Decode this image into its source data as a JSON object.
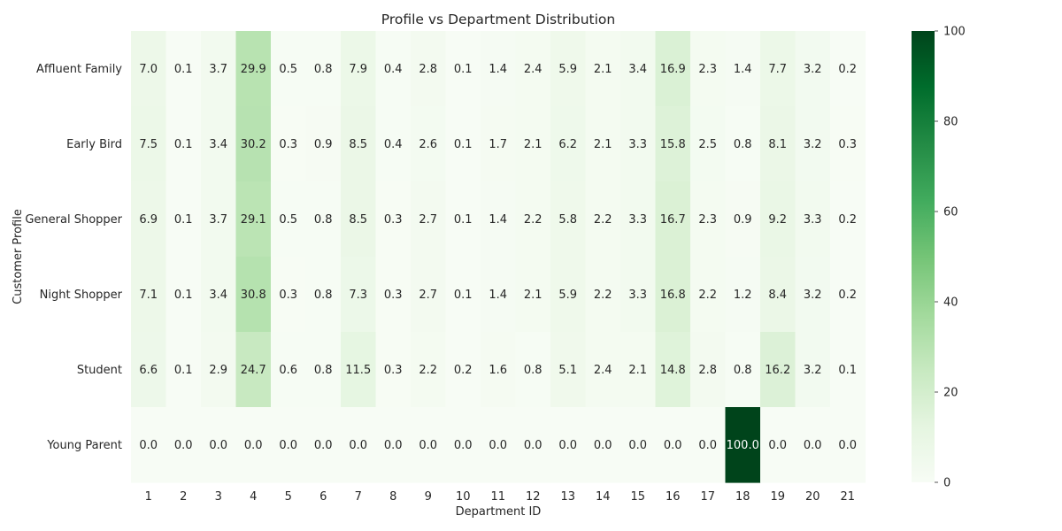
{
  "chart_data": {
    "type": "heatmap",
    "title": "Profile vs Department Distribution",
    "xlabel": "Department ID",
    "ylabel": "Customer Profile",
    "x_categories": [
      "1",
      "2",
      "3",
      "4",
      "5",
      "6",
      "7",
      "8",
      "9",
      "10",
      "11",
      "12",
      "13",
      "14",
      "15",
      "16",
      "17",
      "18",
      "19",
      "20",
      "21"
    ],
    "y_categories": [
      "Affluent Family",
      "Early Bird",
      "General Shopper",
      "Night Shopper",
      "Student",
      "Young Parent"
    ],
    "values": [
      [
        7.0,
        0.1,
        3.7,
        29.9,
        0.5,
        0.8,
        7.9,
        0.4,
        2.8,
        0.1,
        1.4,
        2.4,
        5.9,
        2.1,
        3.4,
        16.9,
        2.3,
        1.4,
        7.7,
        3.2,
        0.2
      ],
      [
        7.5,
        0.1,
        3.4,
        30.2,
        0.3,
        0.9,
        8.5,
        0.4,
        2.6,
        0.1,
        1.7,
        2.1,
        6.2,
        2.1,
        3.3,
        15.8,
        2.5,
        0.8,
        8.1,
        3.2,
        0.3
      ],
      [
        6.9,
        0.1,
        3.7,
        29.1,
        0.5,
        0.8,
        8.5,
        0.3,
        2.7,
        0.1,
        1.4,
        2.2,
        5.8,
        2.2,
        3.3,
        16.7,
        2.3,
        0.9,
        9.2,
        3.3,
        0.2
      ],
      [
        7.1,
        0.1,
        3.4,
        30.8,
        0.3,
        0.8,
        7.3,
        0.3,
        2.7,
        0.1,
        1.4,
        2.1,
        5.9,
        2.2,
        3.3,
        16.8,
        2.2,
        1.2,
        8.4,
        3.2,
        0.2
      ],
      [
        6.6,
        0.1,
        2.9,
        24.7,
        0.6,
        0.8,
        11.5,
        0.3,
        2.2,
        0.2,
        1.6,
        0.8,
        5.1,
        2.4,
        2.1,
        14.8,
        2.8,
        0.8,
        16.2,
        3.2,
        0.1
      ],
      [
        0.0,
        0.0,
        0.0,
        0.0,
        0.0,
        0.0,
        0.0,
        0.0,
        0.0,
        0.0,
        0.0,
        0.0,
        0.0,
        0.0,
        0.0,
        0.0,
        0.0,
        100.0,
        0.0,
        0.0,
        0.0
      ]
    ],
    "value_format": "0.0",
    "colormap": "Greens",
    "vmin": 0,
    "vmax": 100,
    "colorbar_ticks": [
      0,
      20,
      40,
      60,
      80,
      100
    ],
    "colorbar_tick_labels": [
      "0",
      "20",
      "40",
      "60",
      "80",
      "100"
    ]
  },
  "colors": {
    "text_dark": "#262626",
    "text_light": "#ffffff",
    "axis_text": "#262626",
    "cmap_stops": [
      "#f7fcf5",
      "#e5f5e0",
      "#c7e9c0",
      "#a1d99b",
      "#74c476",
      "#41ab5d",
      "#238b45",
      "#006d2c",
      "#00441b"
    ]
  }
}
